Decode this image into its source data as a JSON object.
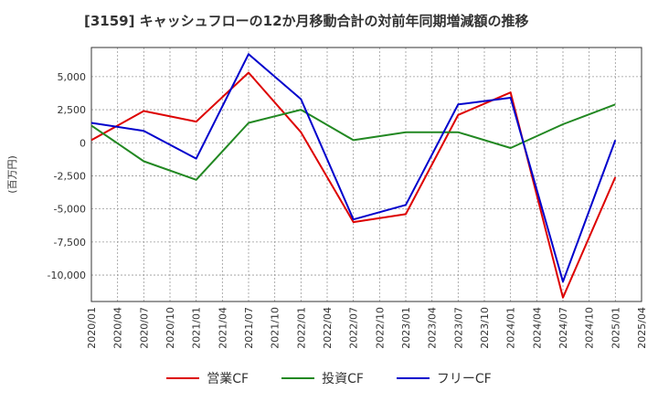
{
  "chart_data": {
    "type": "line",
    "title": "[3159]  キャッシュフローの12か月移動合計の対前年同期増減額の推移",
    "ylabel": "(百万円)",
    "xlabel": "",
    "ylim": [
      -12000,
      7200
    ],
    "yticks": [
      5000,
      2500,
      0,
      -2500,
      -5000,
      -7500,
      -10000
    ],
    "ytick_labels": [
      "5,000",
      "2,500",
      "0",
      "-2,500",
      "-5,000",
      "-7,500",
      "-10,000"
    ],
    "categories": [
      "2020/01",
      "2020/04",
      "2020/07",
      "2020/10",
      "2021/01",
      "2021/04",
      "2021/07",
      "2021/10",
      "2022/01",
      "2022/04",
      "2022/07",
      "2022/10",
      "2023/01",
      "2023/04",
      "2023/07",
      "2023/10",
      "2024/01",
      "2024/04",
      "2024/07",
      "2024/10",
      "2025/01",
      "2025/04"
    ],
    "series": [
      {
        "name": "営業CF",
        "color": "#dd0000",
        "x": [
          0,
          2,
          4,
          6,
          8,
          10,
          12,
          14,
          16,
          18,
          20
        ],
        "values": [
          200,
          2400,
          1600,
          5300,
          800,
          -6000,
          -5400,
          2100,
          3800,
          -11700,
          -2600
        ]
      },
      {
        "name": "投資CF",
        "color": "#228822",
        "x": [
          0,
          2,
          4,
          6,
          8,
          10,
          12,
          14,
          16,
          18,
          20
        ],
        "values": [
          1300,
          -1400,
          -2800,
          1500,
          2500,
          200,
          800,
          800,
          -400,
          1400,
          2900
        ]
      },
      {
        "name": "フリーCF",
        "color": "#0000cc",
        "x": [
          0,
          2,
          4,
          6,
          8,
          10,
          12,
          14,
          16,
          18,
          20
        ],
        "values": [
          1500,
          900,
          -1200,
          6700,
          3300,
          -5800,
          -4700,
          2900,
          3400,
          -10500,
          200
        ]
      }
    ],
    "grid": true,
    "legend_position": "bottom"
  }
}
